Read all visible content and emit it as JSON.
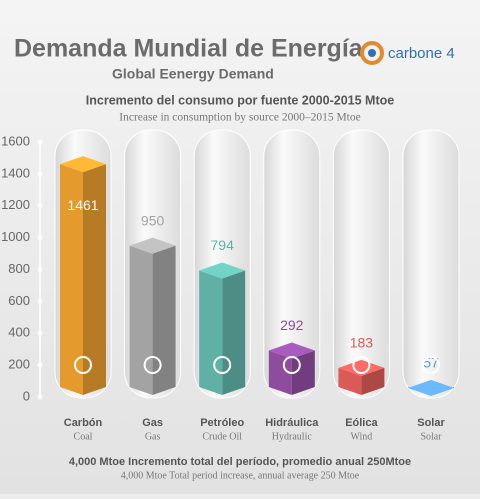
{
  "chart_data": {
    "type": "bar",
    "title": "Demanda Mundial de Energía",
    "subtitle": "Global Eenergy Demand",
    "logo": "carbone 4",
    "heading": "Incremento del consumo por fuente 2000-2015 Mtoe",
    "subheading": "Increase in consumption by source 2000–2015 Mtoe",
    "categories": [
      "Carbón",
      "Gas",
      "Petróleo",
      "Hidráulica",
      "Eólica",
      "Solar"
    ],
    "categories_en": [
      "Coal",
      "Gas",
      "Crude Oil",
      "Hydraulic",
      "Wind",
      "Solar"
    ],
    "values": [
      1461,
      950,
      794,
      292,
      183,
      57
    ],
    "colors": [
      "#e59a2e",
      "#a3a3a3",
      "#5fb1a6",
      "#8d4c9e",
      "#d95a56",
      "#5a9ad6"
    ],
    "ylim": [
      0,
      1600
    ],
    "yticks": [
      0,
      200,
      400,
      600,
      800,
      1000,
      1200,
      1400,
      1600
    ],
    "footer": "4,000 Mtoe Incremento total del período, promedio anual 250Mtoe",
    "footer_en": "4,000 Mtoe Total period increase, annual average 250 Mtoe"
  }
}
